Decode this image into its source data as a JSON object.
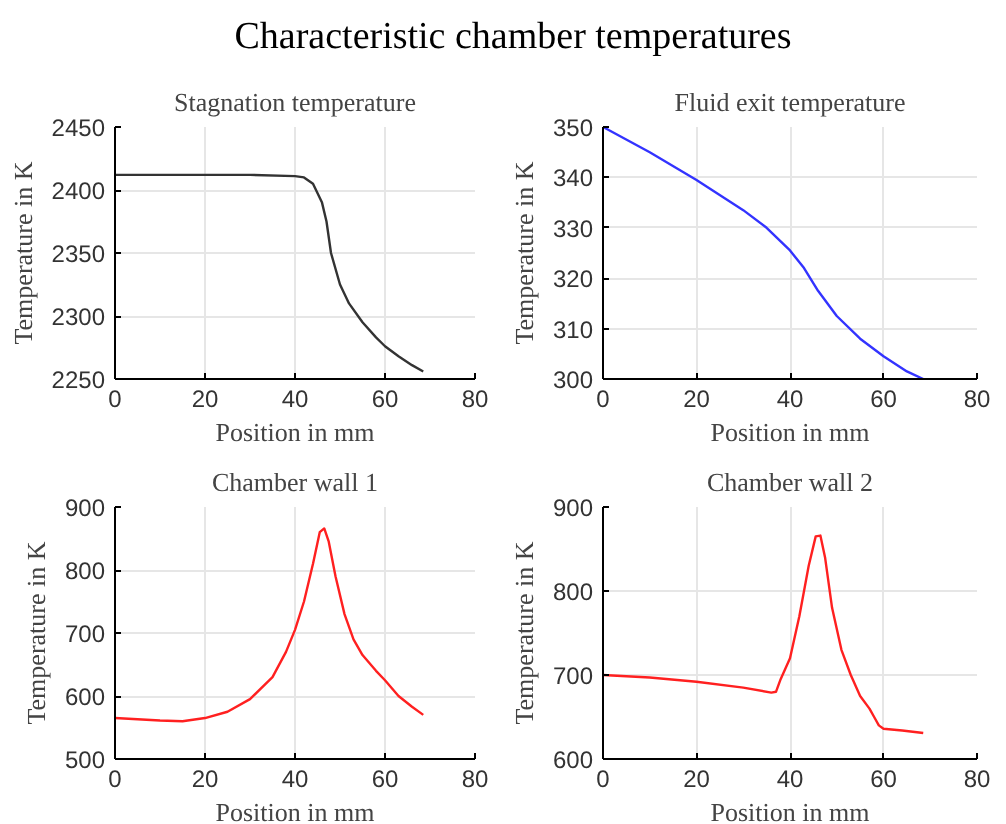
{
  "chart_data": [
    {
      "type": "line",
      "title": "Stagnation temperature",
      "annotations": [
        "Characteristic chamber temperatures"
      ],
      "xlabel": "Position in mm",
      "ylabel": "Temperature in K",
      "xlim": [
        0,
        80
      ],
      "xticks": [
        0,
        20,
        40,
        60,
        80
      ],
      "ylim": [
        2250,
        2450
      ],
      "yticks": [
        2250,
        2300,
        2350,
        2400,
        2450
      ],
      "grid": true,
      "series": [
        {
          "color": "#333333",
          "x": [
            0,
            10,
            20,
            30,
            40,
            42,
            44,
            46,
            47,
            48,
            50,
            52,
            55,
            58,
            60,
            63,
            66,
            68.5
          ],
          "values": [
            2412,
            2412,
            2412,
            2412,
            2411,
            2410,
            2405,
            2390,
            2375,
            2350,
            2325,
            2310,
            2295,
            2283,
            2276,
            2268,
            2261,
            2256
          ]
        }
      ]
    },
    {
      "type": "line",
      "title": "Fluid exit temperature",
      "xlabel": "Position in mm",
      "ylabel": "Temperature in K",
      "xlim": [
        0,
        80
      ],
      "xticks": [
        0,
        20,
        40,
        60,
        80
      ],
      "ylim": [
        300,
        350
      ],
      "yticks": [
        300,
        310,
        320,
        330,
        340,
        350
      ],
      "grid": true,
      "series": [
        {
          "color": "#3333ff",
          "x": [
            0,
            10,
            20,
            30,
            35,
            40,
            43,
            46,
            50,
            55,
            60,
            65,
            68.5
          ],
          "values": [
            350,
            345,
            339.5,
            333.5,
            330,
            325.5,
            322,
            317.5,
            312.5,
            308,
            304.5,
            301.5,
            300
          ]
        }
      ]
    },
    {
      "type": "line",
      "title": "Chamber wall 1",
      "xlabel": "Position in mm",
      "ylabel": "Temperature in K",
      "xlim": [
        0,
        80
      ],
      "xticks": [
        0,
        20,
        40,
        60,
        80
      ],
      "ylim": [
        500,
        900
      ],
      "yticks": [
        500,
        600,
        700,
        800,
        900
      ],
      "grid": true,
      "series": [
        {
          "color": "#ff2020",
          "x": [
            0,
            10,
            15,
            20,
            25,
            30,
            35,
            38,
            40,
            42,
            44,
            45.5,
            46.5,
            47.5,
            49,
            51,
            53,
            55,
            58,
            60,
            63,
            66,
            68.5
          ],
          "values": [
            565,
            561,
            560,
            565,
            575,
            595,
            630,
            670,
            705,
            750,
            810,
            860,
            866,
            845,
            790,
            730,
            690,
            665,
            640,
            625,
            600,
            583,
            570
          ]
        }
      ]
    },
    {
      "type": "line",
      "title": "Chamber wall 2",
      "xlabel": "Position in mm",
      "ylabel": "Temperature in K",
      "xlim": [
        0,
        80
      ],
      "xticks": [
        0,
        20,
        40,
        60,
        80
      ],
      "ylim": [
        600,
        900
      ],
      "yticks": [
        600,
        700,
        800,
        900
      ],
      "grid": true,
      "series": [
        {
          "color": "#ff2020",
          "x": [
            0,
            10,
            20,
            30,
            36,
            37,
            38,
            40,
            42,
            44,
            45.5,
            46.5,
            47.5,
            49,
            51,
            53,
            55,
            57,
            58,
            59,
            60,
            64,
            68.5
          ],
          "values": [
            700,
            697,
            692,
            685,
            679,
            680,
            695,
            720,
            770,
            830,
            865,
            866,
            840,
            780,
            730,
            700,
            675,
            660,
            650,
            640,
            636,
            634,
            631
          ]
        }
      ]
    }
  ]
}
